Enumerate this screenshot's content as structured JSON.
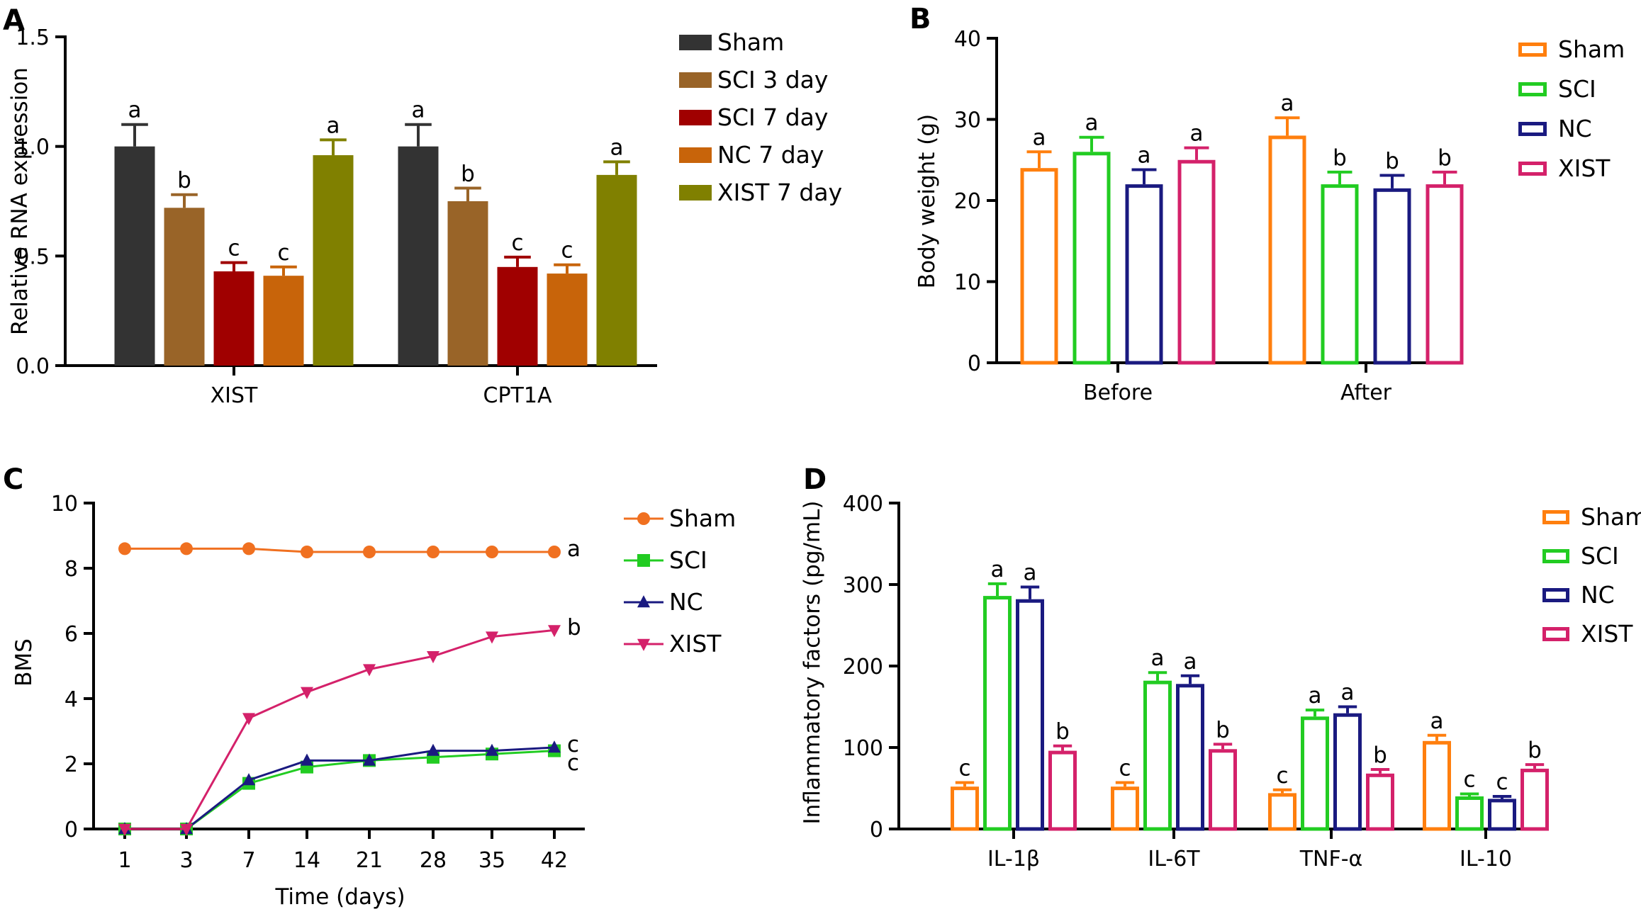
{
  "chart_data": [
    {
      "panel": "A",
      "type": "bar",
      "ylabel": "Relative RNA expression",
      "xlabel": "",
      "ylim": [
        0,
        1.5
      ],
      "yticks": [
        "0.0",
        "0.5",
        "1.0",
        "1.5"
      ],
      "categories": [
        "XIST",
        "CPT1A"
      ],
      "legend_position": "top-right",
      "series": [
        {
          "name": "Sham",
          "color": "#333333",
          "values": [
            1.0,
            1.0
          ],
          "errors": [
            0.1,
            0.1
          ],
          "labels": [
            "a",
            "a"
          ]
        },
        {
          "name": "SCI 3 day",
          "color": "#996428",
          "values": [
            0.72,
            0.75
          ],
          "errors": [
            0.06,
            0.06
          ],
          "labels": [
            "b",
            "b"
          ]
        },
        {
          "name": "SCI 7 day",
          "color": "#a00000",
          "values": [
            0.43,
            0.45
          ],
          "errors": [
            0.04,
            0.045
          ],
          "labels": [
            "c",
            "c"
          ]
        },
        {
          "name": "NC 7 day",
          "color": "#c8640a",
          "values": [
            0.41,
            0.42
          ],
          "errors": [
            0.04,
            0.04
          ],
          "labels": [
            "c",
            "c"
          ]
        },
        {
          "name": "XIST 7 day",
          "color": "#808000",
          "values": [
            0.96,
            0.87
          ],
          "errors": [
            0.07,
            0.06
          ],
          "labels": [
            "a",
            "a"
          ]
        }
      ]
    },
    {
      "panel": "B",
      "type": "bar",
      "ylabel": "Body weight (g)",
      "xlabel": "",
      "ylim": [
        0,
        40
      ],
      "yticks": [
        "0",
        "10",
        "20",
        "30",
        "40"
      ],
      "categories": [
        "Before",
        "After"
      ],
      "legend_position": "top-right",
      "series": [
        {
          "name": "Sham",
          "color": "#ff7f0e",
          "values": [
            24,
            28
          ],
          "errors": [
            2,
            2.2
          ],
          "labels": [
            "a",
            "a"
          ]
        },
        {
          "name": "SCI",
          "color": "#22cc22",
          "values": [
            26,
            22
          ],
          "errors": [
            1.8,
            1.5
          ],
          "labels": [
            "a",
            "b"
          ]
        },
        {
          "name": "NC",
          "color": "#1a1a80",
          "values": [
            22,
            21.5
          ],
          "errors": [
            1.8,
            1.6
          ],
          "labels": [
            "a",
            "b"
          ]
        },
        {
          "name": "XIST",
          "color": "#d4216a",
          "values": [
            25,
            22
          ],
          "errors": [
            1.5,
            1.5
          ],
          "labels": [
            "a",
            "b"
          ]
        }
      ]
    },
    {
      "panel": "C",
      "type": "line",
      "ylabel": "BMS",
      "xlabel": "Time (days)",
      "ylim": [
        0,
        10
      ],
      "yticks": [
        "0",
        "2",
        "4",
        "6",
        "8",
        "10"
      ],
      "x": [
        "1",
        "3",
        "7",
        "14",
        "21",
        "28",
        "35",
        "42"
      ],
      "legend_position": "top-right",
      "series": [
        {
          "name": "Sham",
          "color": "#f07020",
          "marker": "circle",
          "values": [
            8.6,
            8.6,
            8.6,
            8.5,
            8.5,
            8.5,
            8.5,
            8.5
          ],
          "end_label": "a"
        },
        {
          "name": "SCI",
          "color": "#22cc22",
          "marker": "square",
          "values": [
            0,
            0,
            1.4,
            1.9,
            2.1,
            2.2,
            2.3,
            2.4
          ],
          "end_label": "c"
        },
        {
          "name": "NC",
          "color": "#1a1a80",
          "marker": "triangle-up",
          "values": [
            0,
            0,
            1.5,
            2.1,
            2.1,
            2.4,
            2.4,
            2.5
          ],
          "end_label": "c"
        },
        {
          "name": "XIST",
          "color": "#d4216a",
          "marker": "triangle-down",
          "values": [
            0,
            0,
            3.4,
            4.2,
            4.9,
            5.3,
            5.9,
            6.1
          ],
          "end_label": "b"
        }
      ]
    },
    {
      "panel": "D",
      "type": "bar",
      "ylabel": "Inflammatory factors (pg/mL)",
      "xlabel": "",
      "ylim": [
        0,
        400
      ],
      "yticks": [
        "0",
        "100",
        "200",
        "300",
        "400"
      ],
      "categories": [
        "IL-1β",
        "IL-6T",
        "TNF-α",
        "IL-10"
      ],
      "legend_position": "top-right",
      "series": [
        {
          "name": "Sham",
          "color": "#ff7f0e",
          "values": [
            52,
            52,
            44,
            108
          ],
          "errors": [
            5,
            5,
            4,
            7
          ],
          "labels": [
            "c",
            "c",
            "c",
            "a"
          ]
        },
        {
          "name": "SCI",
          "color": "#22cc22",
          "values": [
            286,
            182,
            138,
            40
          ],
          "errors": [
            15,
            10,
            8,
            3
          ],
          "labels": [
            "a",
            "a",
            "a",
            "c"
          ]
        },
        {
          "name": "NC",
          "color": "#1a1a80",
          "values": [
            282,
            178,
            142,
            37
          ],
          "errors": [
            15,
            10,
            8,
            3
          ],
          "labels": [
            "a",
            "a",
            "a",
            "c"
          ]
        },
        {
          "name": "XIST",
          "color": "#d4216a",
          "values": [
            96,
            98,
            68,
            74
          ],
          "errors": [
            6,
            6,
            5,
            5
          ],
          "labels": [
            "b",
            "b",
            "b",
            "b"
          ]
        }
      ]
    }
  ]
}
